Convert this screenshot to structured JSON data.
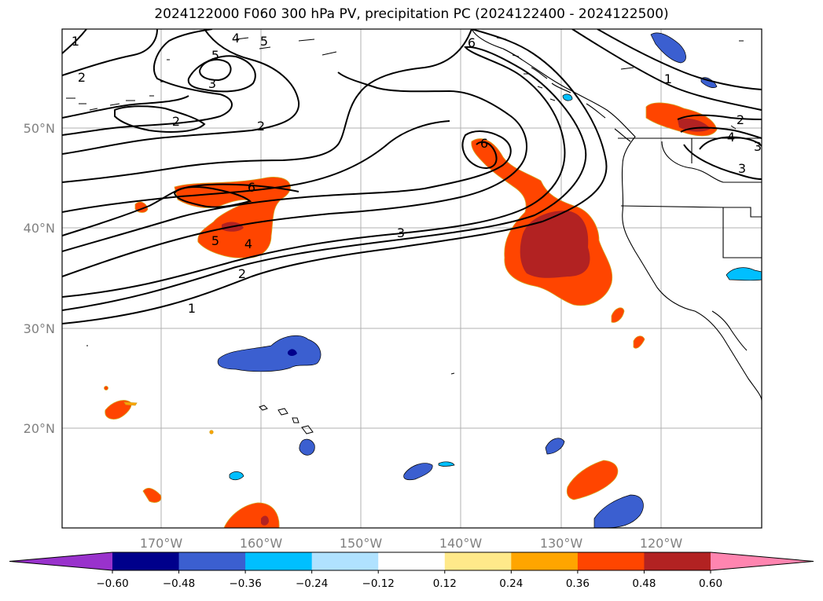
{
  "title": "2024122000 F060 300 hPa PV, precipitation PC (2024122400 - 2024122500)",
  "lat_labels": [
    "50°N",
    "40°N",
    "30°N",
    "20°N"
  ],
  "lon_labels": [
    "170°W",
    "160°W",
    "150°W",
    "140°W",
    "130°W",
    "120°W"
  ],
  "colorbar": {
    "ticks": [
      "−0.60",
      "−0.48",
      "−0.36",
      "−0.24",
      "−0.12",
      "0.12",
      "0.24",
      "0.36",
      "0.48",
      "0.60"
    ],
    "colors": [
      "#9932cc",
      "#00008b",
      "#3b5fd0",
      "#00bfff",
      "#b0e2ff",
      "#ffffff",
      "#ffe98a",
      "#ffa500",
      "#ff4500",
      "#b22222",
      "#ff85b0"
    ]
  },
  "contour_labels": [
    "1",
    "2",
    "3",
    "4",
    "5",
    "6",
    "2",
    "2",
    "5",
    "6",
    "5",
    "4",
    "2",
    "3",
    "1",
    "6",
    "1",
    "2",
    "3",
    "4",
    "3"
  ]
}
